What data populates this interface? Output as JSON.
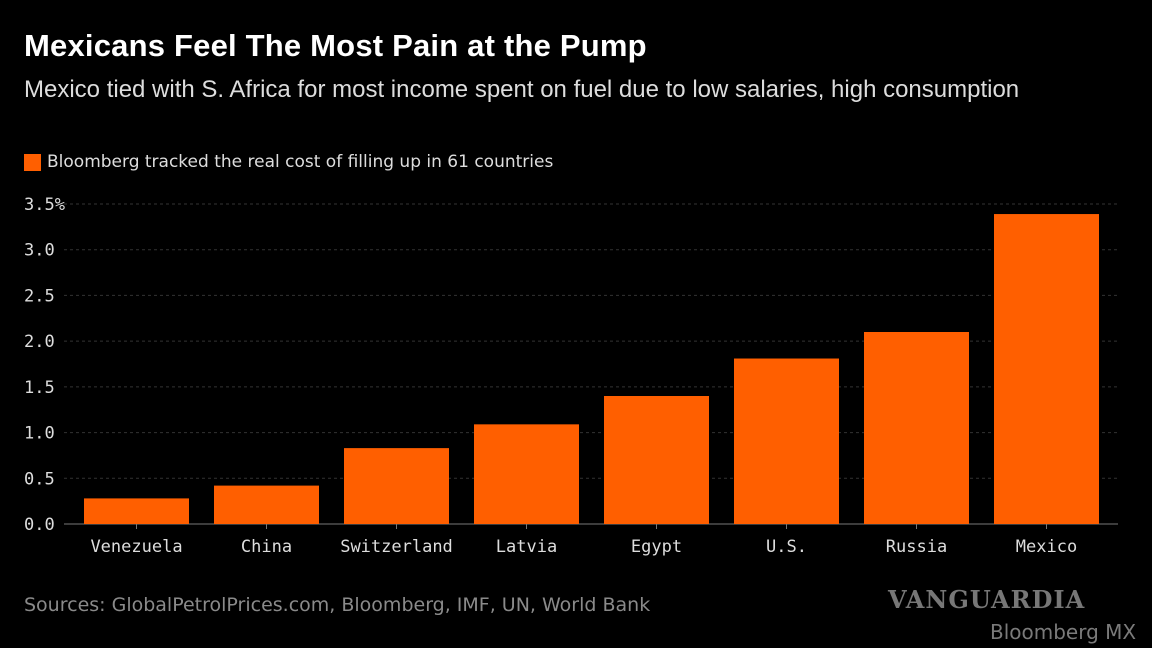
{
  "chart_data": {
    "type": "bar",
    "title": "Mexicans Feel The Most Pain at the Pump",
    "subtitle": "Mexico tied with S. Africa for most income spent on fuel due to low salaries, high consumption",
    "series": [
      {
        "name": "Bloomberg tracked the real cost of filling up in 61 countries",
        "values": [
          0.28,
          0.42,
          0.83,
          1.09,
          1.4,
          1.81,
          2.1,
          3.39
        ]
      }
    ],
    "categories": [
      "Venezuela",
      "China",
      "Switzerland",
      "Latvia",
      "Egypt",
      "U.S.",
      "Russia",
      "Mexico"
    ],
    "yticks": [
      "0.0",
      "0.5",
      "1.0",
      "1.5",
      "2.0",
      "2.5",
      "3.0",
      "3.5%"
    ],
    "ylim": [
      0,
      3.5
    ],
    "grid": true,
    "legend": "top-left",
    "bar_color": "#ff5f00",
    "source": "Sources: GlobalPetrolPrices.com, Bloomberg, IMF, UN, World Bank"
  },
  "watermarks": [
    "VANGUARDIA",
    "Bloomberg MX"
  ]
}
